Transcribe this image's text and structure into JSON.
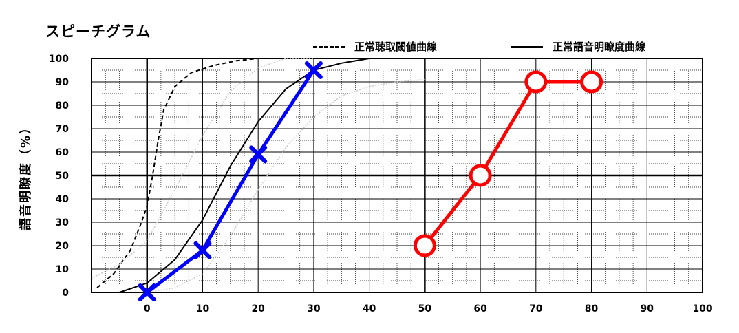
{
  "chart_data": {
    "type": "line",
    "title": "スピーチグラム",
    "xlabel": "",
    "ylabel": "語音明瞭度（%）",
    "xlim": [
      -10,
      100
    ],
    "ylim": [
      0,
      100
    ],
    "x_ticks": [
      0,
      10,
      20,
      30,
      40,
      50,
      60,
      70,
      80,
      90,
      100
    ],
    "y_ticks": [
      0,
      10,
      20,
      30,
      40,
      50,
      60,
      70,
      80,
      90,
      100
    ],
    "grid": true,
    "legend_position": "top-right",
    "legend": [
      {
        "label": "正常聴取閾値曲線",
        "style": "dashed",
        "color": "#000000"
      },
      {
        "label": "正常語音明瞭度曲線",
        "style": "solid",
        "color": "#000000"
      }
    ],
    "reference_curves": [
      {
        "style": "dashed",
        "color": "#000000",
        "x": [
          -9,
          -6,
          -3,
          -1,
          0,
          1,
          2,
          3,
          5,
          8,
          12,
          16,
          20
        ],
        "y": [
          2,
          8,
          18,
          30,
          37,
          50,
          65,
          78,
          88,
          94,
          97,
          99,
          100
        ]
      },
      {
        "style": "solid",
        "color": "#000000",
        "x": [
          -5,
          0,
          5,
          10,
          15,
          20,
          25,
          30,
          35,
          40
        ],
        "y": [
          0,
          4,
          14,
          31,
          54,
          73,
          87,
          95,
          98,
          100
        ]
      },
      {
        "style": "dotted",
        "color": "#c8c8c8",
        "x": [
          -10,
          -5,
          0,
          5,
          10,
          15,
          20,
          25,
          30
        ],
        "y": [
          6,
          12,
          22,
          44,
          67,
          86,
          96,
          100,
          100
        ]
      },
      {
        "style": "dotted",
        "color": "#c8c8c8",
        "x": [
          0,
          5,
          10,
          15,
          20,
          25,
          30,
          35,
          40,
          45,
          50
        ],
        "y": [
          0,
          2,
          8,
          24,
          44,
          62,
          75,
          84,
          88,
          90,
          91
        ]
      }
    ],
    "series": [
      {
        "color": "#0000ff",
        "marker": "x",
        "x": [
          0,
          10,
          20,
          30
        ],
        "y": [
          0,
          18,
          59,
          95
        ]
      },
      {
        "color": "#ff0000",
        "marker": "o",
        "x": [
          50,
          60,
          70,
          80
        ],
        "y": [
          20,
          50,
          90,
          90
        ]
      }
    ]
  }
}
